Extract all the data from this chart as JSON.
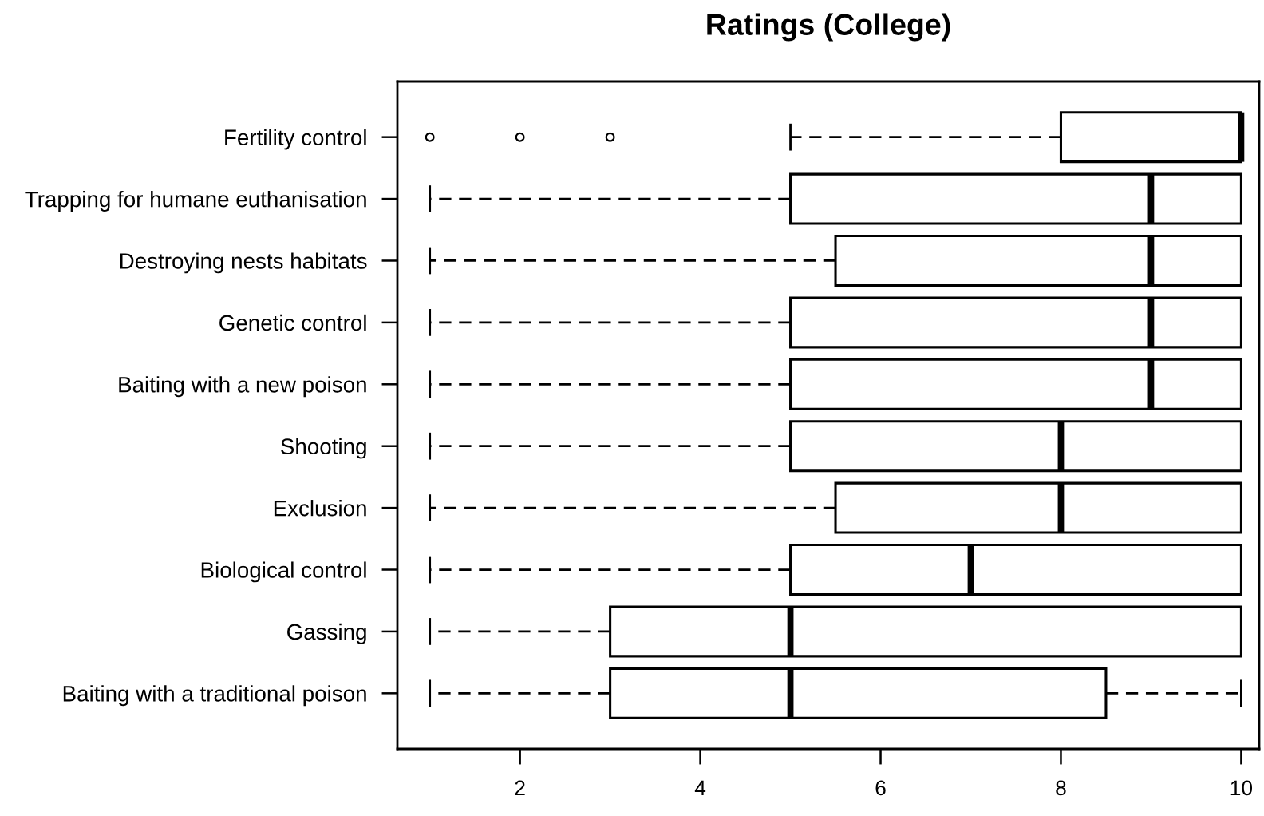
{
  "chart_data": {
    "type": "box",
    "title": "Ratings (College)",
    "orientation": "horizontal",
    "categories": [
      "Fertility control",
      "Trapping for humane euthanisation",
      "Destroying nests habitats",
      "Genetic control",
      "Baiting with a new poison",
      "Shooting",
      "Exclusion",
      "Biological control",
      "Gassing",
      "Baiting with a traditional poison"
    ],
    "boxes": [
      {
        "low": 5,
        "q1": 8,
        "median": 10,
        "q3": 10,
        "high": 10,
        "outliers": [
          1,
          2,
          3
        ]
      },
      {
        "low": 1,
        "q1": 5,
        "median": 9,
        "q3": 10,
        "high": 10
      },
      {
        "low": 1,
        "q1": 5.5,
        "median": 9,
        "q3": 10,
        "high": 10
      },
      {
        "low": 1,
        "q1": 5,
        "median": 9,
        "q3": 10,
        "high": 10
      },
      {
        "low": 1,
        "q1": 5,
        "median": 9,
        "q3": 10,
        "high": 10
      },
      {
        "low": 1,
        "q1": 5,
        "median": 8,
        "q3": 10,
        "high": 10
      },
      {
        "low": 1,
        "q1": 5.5,
        "median": 8,
        "q3": 10,
        "high": 10
      },
      {
        "low": 1,
        "q1": 5,
        "median": 7,
        "q3": 10,
        "high": 10
      },
      {
        "low": 1,
        "q1": 3,
        "median": 5,
        "q3": 10,
        "high": 10
      },
      {
        "low": 1,
        "q1": 3,
        "median": 5,
        "q3": 8.5,
        "high": 10
      }
    ],
    "xlim": [
      0.64,
      10.2
    ],
    "xticks": [
      2,
      4,
      6,
      8,
      10
    ],
    "marker": "circle",
    "line_style": "dashed"
  }
}
